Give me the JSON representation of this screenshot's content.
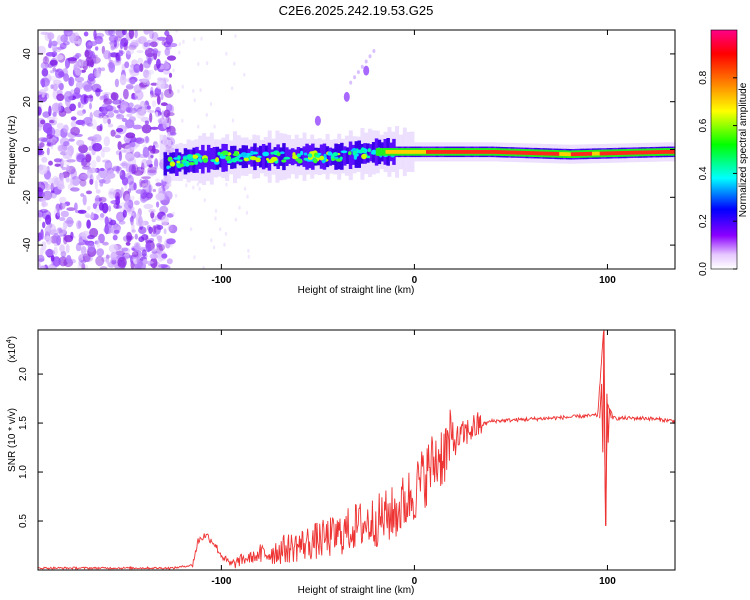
{
  "figure_title": "C2E6.2025.242.19.53.G25",
  "chart_data": [
    {
      "type": "heatmap",
      "title": "C2E6.2025.242.19.53.G25",
      "xlabel": "Height of straight line (km)",
      "ylabel": "Frequency (Hz)",
      "xlim": [
        -195,
        135
      ],
      "ylim": [
        -50,
        50
      ],
      "x_ticks": [
        -100,
        0,
        100
      ],
      "x_tick_labels": [
        "-100",
        "0",
        "100"
      ],
      "y_ticks": [
        -40,
        -20,
        0,
        20,
        40
      ],
      "y_tick_labels": [
        "-40",
        "-20",
        "0",
        "20",
        "40"
      ],
      "colorbar": {
        "label": "Normalized spectral amplitude",
        "range": [
          0,
          1
        ],
        "ticks": [
          0,
          0.2,
          0.4,
          0.6,
          0.8
        ],
        "tick_labels": [
          "0.0",
          "0.2",
          "0.4",
          "0.6",
          "0.8"
        ],
        "colormap": [
          "#ffffff",
          "#8b00ff",
          "#0000ff",
          "#00ffff",
          "#00ff00",
          "#ffff00",
          "#ff7f00",
          "#ff0000",
          "#ff0088"
        ]
      },
      "features": {
        "noise_region_x": [
          -195,
          -125
        ],
        "main_band": [
          {
            "x": -130,
            "f": -6
          },
          {
            "x": -110,
            "f": -4
          },
          {
            "x": -90,
            "f": -3
          },
          {
            "x": -65,
            "f": -3
          },
          {
            "x": -40,
            "f": -3
          },
          {
            "x": -20,
            "f": -1
          },
          {
            "x": 0,
            "f": -1
          },
          {
            "x": 40,
            "f": -1
          },
          {
            "x": 80,
            "f": -2
          },
          {
            "x": 130,
            "f": -1
          }
        ],
        "secondary_streak": [
          {
            "x": -50,
            "f": 12
          },
          {
            "x": -35,
            "f": 22
          },
          {
            "x": -25,
            "f": 33
          }
        ]
      }
    },
    {
      "type": "line",
      "xlabel": "Height of straight line (km)",
      "ylabel": "SNR (10 * v/v)",
      "y_multiplier": "(x10",
      "y_multiplier_exp": "4",
      "y_multiplier_close": ")",
      "xlim": [
        -195,
        135
      ],
      "ylim": [
        0,
        2.45
      ],
      "x_ticks": [
        -100,
        0,
        100
      ],
      "x_tick_labels": [
        "-100",
        "0",
        "100"
      ],
      "y_ticks": [
        0.5,
        1.0,
        1.5,
        2.0
      ],
      "y_tick_labels": [
        "0.5",
        "1.0",
        "1.5",
        "2.0"
      ],
      "color": "#ee3333",
      "series": [
        {
          "name": "SNR",
          "points": [
            [
              -195,
              0.02
            ],
            [
              -160,
              0.02
            ],
            [
              -125,
              0.02
            ],
            [
              -115,
              0.05
            ],
            [
              -112,
              0.3
            ],
            [
              -108,
              0.36
            ],
            [
              -104,
              0.28
            ],
            [
              -100,
              0.15
            ],
            [
              -95,
              0.05
            ],
            [
              -90,
              0.1
            ],
            [
              -80,
              0.15
            ],
            [
              -70,
              0.2
            ],
            [
              -60,
              0.25
            ],
            [
              -50,
              0.3
            ],
            [
              -40,
              0.35
            ],
            [
              -30,
              0.45
            ],
            [
              -20,
              0.5
            ],
            [
              -10,
              0.58
            ],
            [
              0,
              0.8
            ],
            [
              10,
              1.1
            ],
            [
              20,
              1.3
            ],
            [
              30,
              1.45
            ],
            [
              40,
              1.52
            ],
            [
              60,
              1.54
            ],
            [
              80,
              1.56
            ],
            [
              95,
              1.58
            ],
            [
              98,
              2.45
            ],
            [
              99,
              0.45
            ],
            [
              100,
              1.7
            ],
            [
              103,
              1.55
            ],
            [
              120,
              1.55
            ],
            [
              135,
              1.52
            ]
          ]
        }
      ]
    }
  ]
}
